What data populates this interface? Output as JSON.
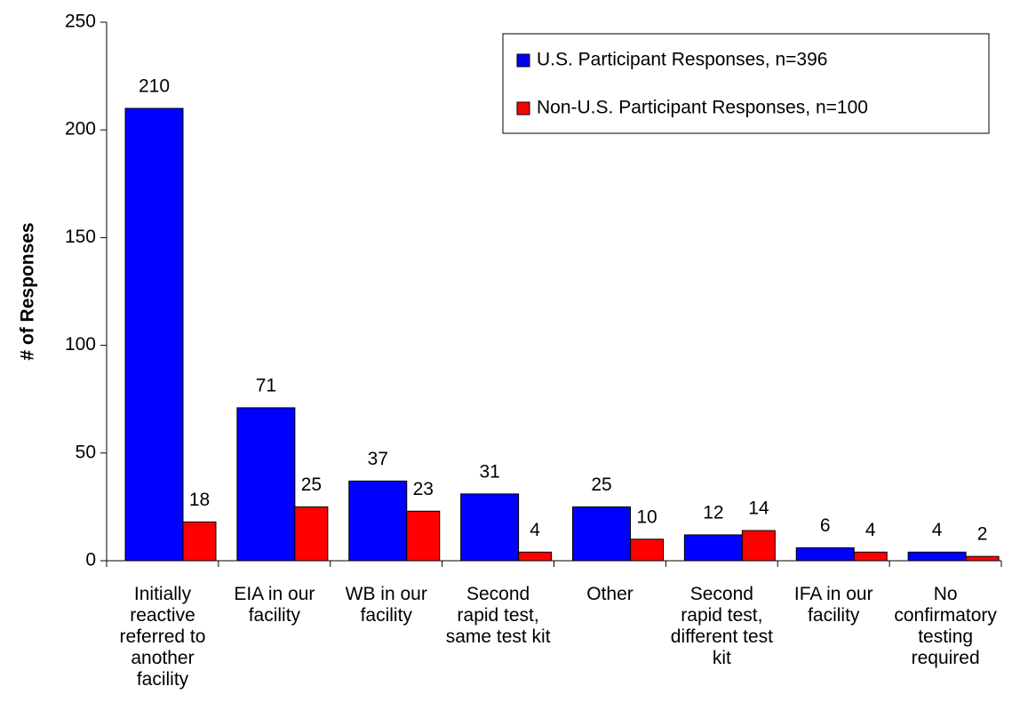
{
  "chart_data": {
    "type": "bar",
    "y_label": "# of Responses",
    "categories": [
      "Initially\nreactive\nreferred to\nanother\nfacility",
      "EIA in our\nfacility",
      "WB in our\nfacility",
      "Second\nrapid test,\nsame test kit",
      "Other",
      "Second\nrapid test,\ndifferent test\nkit",
      "IFA in our\nfacility",
      "No\nconfirmatory\ntesting\nrequired"
    ],
    "series": [
      {
        "name": "U.S. Participant Responses, n=396",
        "color": "#0000ff",
        "values": [
          210,
          71,
          37,
          31,
          25,
          12,
          6,
          4
        ]
      },
      {
        "name": "Non-U.S. Participant Responses, n=100",
        "color": "#ff0000",
        "values": [
          18,
          25,
          23,
          4,
          10,
          14,
          4,
          2
        ]
      }
    ],
    "ylim": [
      0,
      250
    ],
    "yticks": [
      0,
      50,
      100,
      150,
      200,
      250
    ],
    "legend": "upper right"
  }
}
